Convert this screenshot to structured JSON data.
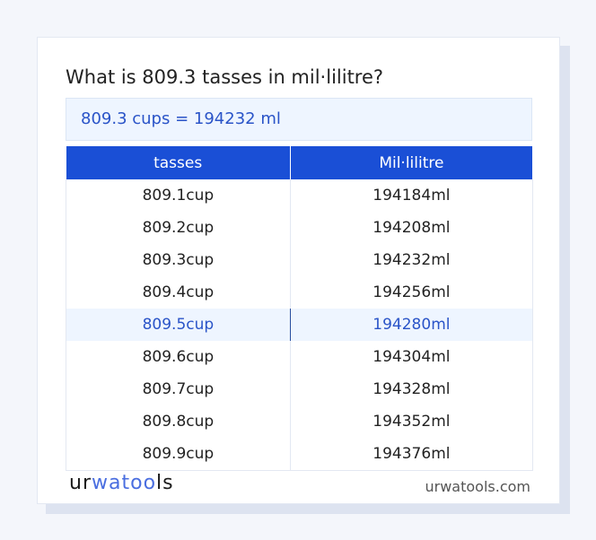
{
  "title": "What is 809.3 tasses in mil·lilitre?",
  "result": "809.3 cups = 194232 ml",
  "table": {
    "headers": [
      "tasses",
      "Mil·lilitre"
    ],
    "rows": [
      [
        "809.1cup",
        "194184ml"
      ],
      [
        "809.2cup",
        "194208ml"
      ],
      [
        "809.3cup",
        "194232ml"
      ],
      [
        "809.4cup",
        "194256ml"
      ],
      [
        "809.5cup",
        "194280ml"
      ],
      [
        "809.6cup",
        "194304ml"
      ],
      [
        "809.7cup",
        "194328ml"
      ],
      [
        "809.8cup",
        "194352ml"
      ],
      [
        "809.9cup",
        "194376ml"
      ]
    ],
    "highlighted_row": 4
  },
  "footer": {
    "logo": "urwatools",
    "logo_parts": [
      "ur",
      "wa",
      "too",
      "ls"
    ],
    "site": "urwatools.com"
  },
  "colors": {
    "accent": "#1a4fd6",
    "highlight_bg": "#eef5ff",
    "highlight_text": "#2a54c8"
  }
}
